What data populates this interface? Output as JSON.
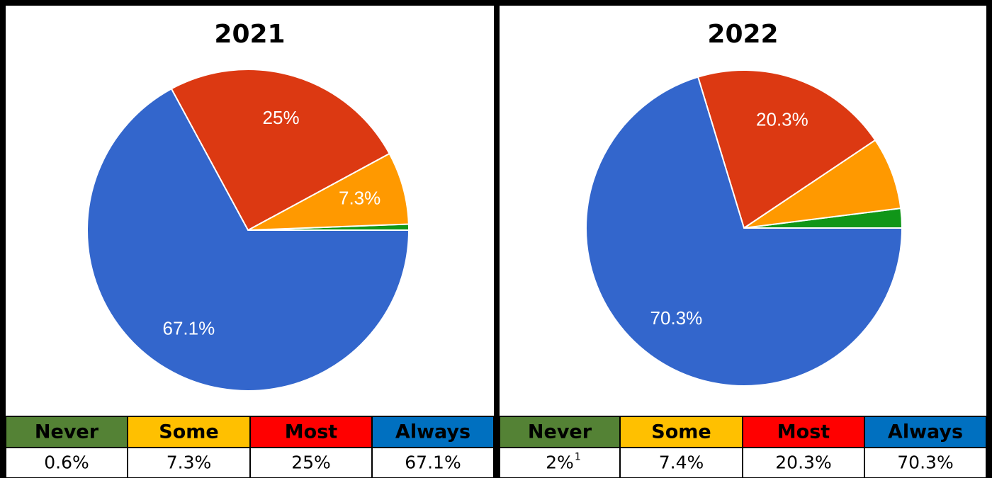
{
  "chart_data": [
    {
      "type": "pie",
      "title": "2021",
      "categories": [
        "Never",
        "Some",
        "Most",
        "Always"
      ],
      "values": [
        0.6,
        7.3,
        25,
        67.1
      ],
      "value_labels": [
        "0.6%",
        "7.3%",
        "25%",
        "67.1%"
      ],
      "slice_labels": [
        null,
        "7.3%",
        "25%",
        "67.1%"
      ],
      "footnote_marks": [
        null,
        null,
        null,
        null
      ],
      "colors": [
        "#109618",
        "#ff9900",
        "#dc3912",
        "#3366cc"
      ],
      "header_colors": [
        "#548235",
        "#ffc000",
        "#ff0000",
        "#0070c0"
      ]
    },
    {
      "type": "pie",
      "title": "2022",
      "categories": [
        "Never",
        "Some",
        "Most",
        "Always"
      ],
      "values": [
        2,
        7.4,
        20.3,
        70.3
      ],
      "value_labels": [
        "2%",
        "7.4%",
        "20.3%",
        "70.3%"
      ],
      "slice_labels": [
        null,
        null,
        "20.3%",
        "70.3%"
      ],
      "footnote_marks": [
        "1",
        null,
        null,
        null
      ],
      "colors": [
        "#109618",
        "#ff9900",
        "#dc3912",
        "#3366cc"
      ],
      "header_colors": [
        "#548235",
        "#ffc000",
        "#ff0000",
        "#0070c0"
      ]
    }
  ]
}
